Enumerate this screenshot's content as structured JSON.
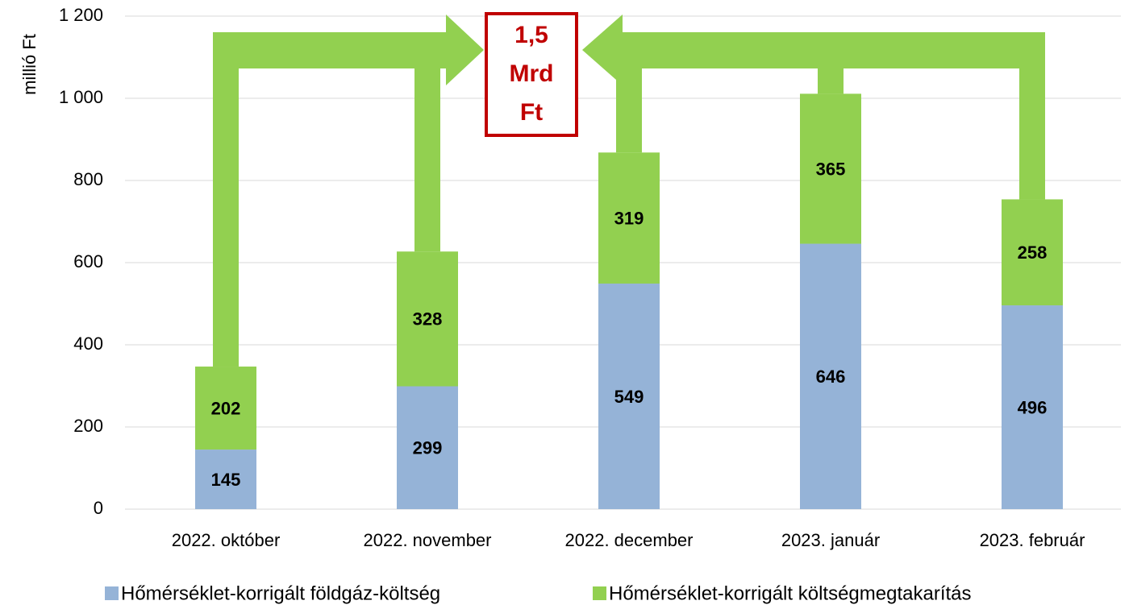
{
  "chart_data": {
    "type": "stacked_bar",
    "y_axis_label": "millió Ft",
    "categories": [
      "2022. október",
      "2022. november",
      "2022. december",
      "2023. január",
      "2023. február"
    ],
    "series": [
      {
        "name": "Hőmérséklet-korrigált földgáz-költség",
        "color": "#95b3d7",
        "values": [
          145,
          299,
          549,
          646,
          496
        ]
      },
      {
        "name": "Hőmérséklet-korrigált költségmegtakarítás",
        "color": "#92d050",
        "values": [
          202,
          328,
          319,
          365,
          258
        ]
      }
    ],
    "ylim": [
      0,
      1200
    ],
    "yticks": [
      0,
      200,
      400,
      600,
      800,
      {
        "value": 1000,
        "label": "1 000"
      },
      {
        "value": 1200,
        "label": "1 200"
      }
    ],
    "grid": true,
    "legend": "bottom",
    "annotation": [
      "1,5",
      "Mrd",
      "Ft"
    ]
  }
}
